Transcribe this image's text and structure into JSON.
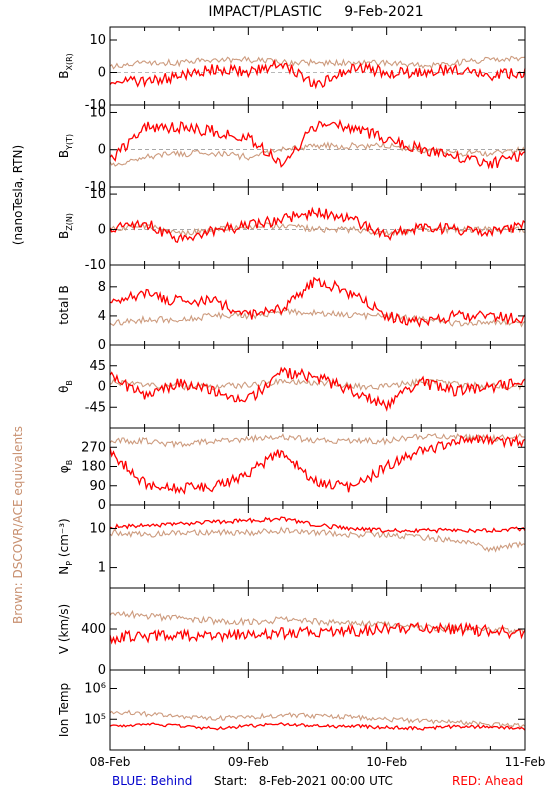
{
  "chart_data": {
    "type": "line",
    "title": "IMPACT/PLASTIC     9-Feb-2021",
    "x_ticks": [
      "08-Feb",
      "09-Feb",
      "10-Feb",
      "11-Feb"
    ],
    "start_label": "Start:   8-Feb-2021 00:00 UTC",
    "legend_behind": "BLUE: Behind",
    "legend_ahead": "RED: Ahead",
    "side_label_units": "(nanoTesla, RTN)",
    "side_label_brown": "Brown: DSCOVR/ACE equivalents",
    "colors": {
      "ahead": "#ff0000",
      "behind": "#c89070",
      "behind_label": "#0000cc",
      "brown_label": "#c89070"
    },
    "x_hours": [
      0,
      6,
      12,
      18,
      24,
      30,
      36,
      42,
      48,
      54,
      60,
      66,
      72
    ],
    "panels": [
      {
        "id": "bx",
        "ylabel": "B_X(R)",
        "ylim": [
          -10,
          14
        ],
        "yticks": [
          10,
          0,
          -10
        ],
        "ytick_labels": [
          "10",
          "0",
          "-10"
        ],
        "zero_line": true,
        "series": [
          {
            "name": "Ahead",
            "values": [
              -2,
              -3,
              -1,
              1,
              0,
              3,
              -4,
              2,
              0,
              0,
              1,
              -1,
              0
            ]
          },
          {
            "name": "DSCOVR/ACE",
            "values": [
              2,
              3,
              3,
              4,
              4,
              3,
              3,
              3,
              3,
              2,
              3,
              4,
              4
            ]
          }
        ]
      },
      {
        "id": "by",
        "ylabel": "B_Y(T)",
        "ylim": [
          -10,
          12
        ],
        "yticks": [
          10,
          0,
          -10
        ],
        "ytick_labels": [
          "10",
          "0",
          "-10"
        ],
        "zero_line": true,
        "series": [
          {
            "name": "Ahead",
            "values": [
              -3,
              6,
              6,
              5,
              3,
              -4,
              7,
              6,
              3,
              0,
              -2,
              -4,
              -1
            ]
          },
          {
            "name": "DSCOVR/ACE",
            "values": [
              -4,
              -2,
              -1,
              -1,
              -2,
              0,
              1,
              1,
              1,
              0,
              -1,
              -1,
              0
            ]
          }
        ]
      },
      {
        "id": "bz",
        "ylabel": "B_Z(N)",
        "ylim": [
          -10,
          12
        ],
        "yticks": [
          10,
          0,
          -10
        ],
        "ytick_labels": [
          "10",
          "0",
          "-10"
        ],
        "zero_line": true,
        "series": [
          {
            "name": "Ahead",
            "values": [
              0,
              2,
              -3,
              0,
              1,
              3,
              5,
              3,
              -2,
              1,
              0,
              -1,
              1
            ]
          },
          {
            "name": "DSCOVR/ACE",
            "values": [
              0,
              1,
              -1,
              0,
              1,
              1,
              0,
              0,
              -1,
              0,
              0,
              0,
              0
            ]
          }
        ]
      },
      {
        "id": "bt",
        "ylabel": "total B",
        "ylim": [
          0,
          11
        ],
        "yticks": [
          8,
          4,
          0
        ],
        "ytick_labels": [
          "8",
          "4",
          "0"
        ],
        "zero_line": false,
        "series": [
          {
            "name": "Ahead",
            "values": [
              6,
              7,
              6,
              6,
              4,
              5,
              9,
              7,
              4,
              3,
              4,
              4,
              3.5
            ]
          },
          {
            "name": "DSCOVR/ACE",
            "values": [
              3,
              3.5,
              3.5,
              4,
              4,
              4.5,
              4.5,
              4,
              4,
              3.5,
              3,
              3,
              3
            ]
          }
        ]
      },
      {
        "id": "theta",
        "ylabel": "θ_B",
        "ylim": [
          -90,
          90
        ],
        "yticks": [
          45,
          0,
          -45
        ],
        "ytick_labels": [
          "45",
          "0",
          "-45"
        ],
        "zero_line": false,
        "series": [
          {
            "name": "Ahead",
            "values": [
              20,
              -20,
              10,
              -10,
              -30,
              30,
              20,
              -10,
              -40,
              10,
              -10,
              0,
              10
            ]
          },
          {
            "name": "DSCOVR/ACE",
            "values": [
              10,
              5,
              0,
              0,
              5,
              10,
              10,
              0,
              0,
              10,
              5,
              0,
              0
            ]
          }
        ]
      },
      {
        "id": "phi",
        "ylabel": "φ_B",
        "ylim": [
          0,
          360
        ],
        "yticks": [
          270,
          180,
          90,
          0
        ],
        "ytick_labels": [
          "270",
          "180",
          "90",
          "0"
        ],
        "zero_line": false,
        "series": [
          {
            "name": "Ahead",
            "values": [
              250,
              100,
              80,
              80,
              150,
              250,
              100,
              80,
              180,
              250,
              300,
              300,
              300
            ]
          },
          {
            "name": "DSCOVR/ACE",
            "values": [
              300,
              300,
              280,
              300,
              310,
              320,
              300,
              300,
              300,
              320,
              320,
              310,
              320
            ]
          }
        ]
      },
      {
        "id": "np",
        "ylabel": "N_P (cm⁻³)",
        "ylim_log": [
          0.3,
          40
        ],
        "log": true,
        "yticks": [
          10,
          1
        ],
        "ytick_labels": [
          "10",
          "1"
        ],
        "zero_line": false,
        "series": [
          {
            "name": "Ahead",
            "values": [
              11,
              12,
              13,
              15,
              16,
              18,
              12,
              10,
              9,
              9,
              9,
              9,
              10
            ]
          },
          {
            "name": "DSCOVR/ACE",
            "values": [
              8,
              7,
              8,
              8,
              8,
              9,
              8,
              7,
              7,
              6,
              5,
              3,
              4
            ]
          }
        ]
      },
      {
        "id": "v",
        "ylabel": "V (km/s)",
        "ylim": [
          0,
          800
        ],
        "yticks": [
          400,
          0
        ],
        "ytick_labels": [
          "400",
          "0"
        ],
        "zero_line": false,
        "series": [
          {
            "name": "Ahead",
            "values": [
              320,
              330,
              330,
              340,
              350,
              360,
              370,
              380,
              400,
              410,
              400,
              380,
              360
            ]
          },
          {
            "name": "DSCOVR/ACE",
            "values": [
              560,
              530,
              500,
              480,
              470,
              490,
              470,
              450,
              440,
              420,
              400,
              390,
              380
            ]
          }
        ]
      },
      {
        "id": "temp",
        "ylabel": "Ion Temp",
        "ylim_log": [
          10000,
          4000000
        ],
        "log": true,
        "yticks": [
          1000000,
          100000
        ],
        "ytick_labels": [
          "10⁶",
          "10⁵"
        ],
        "zero_line": false,
        "series": [
          {
            "name": "Ahead",
            "values": [
              60000,
              70000,
              60000,
              50000,
              60000,
              70000,
              60000,
              60000,
              55000,
              50000,
              60000,
              55000,
              50000
            ]
          },
          {
            "name": "DSCOVR/ACE",
            "values": [
              180000,
              150000,
              120000,
              110000,
              120000,
              140000,
              130000,
              120000,
              100000,
              90000,
              80000,
              70000,
              60000
            ]
          }
        ]
      }
    ]
  }
}
